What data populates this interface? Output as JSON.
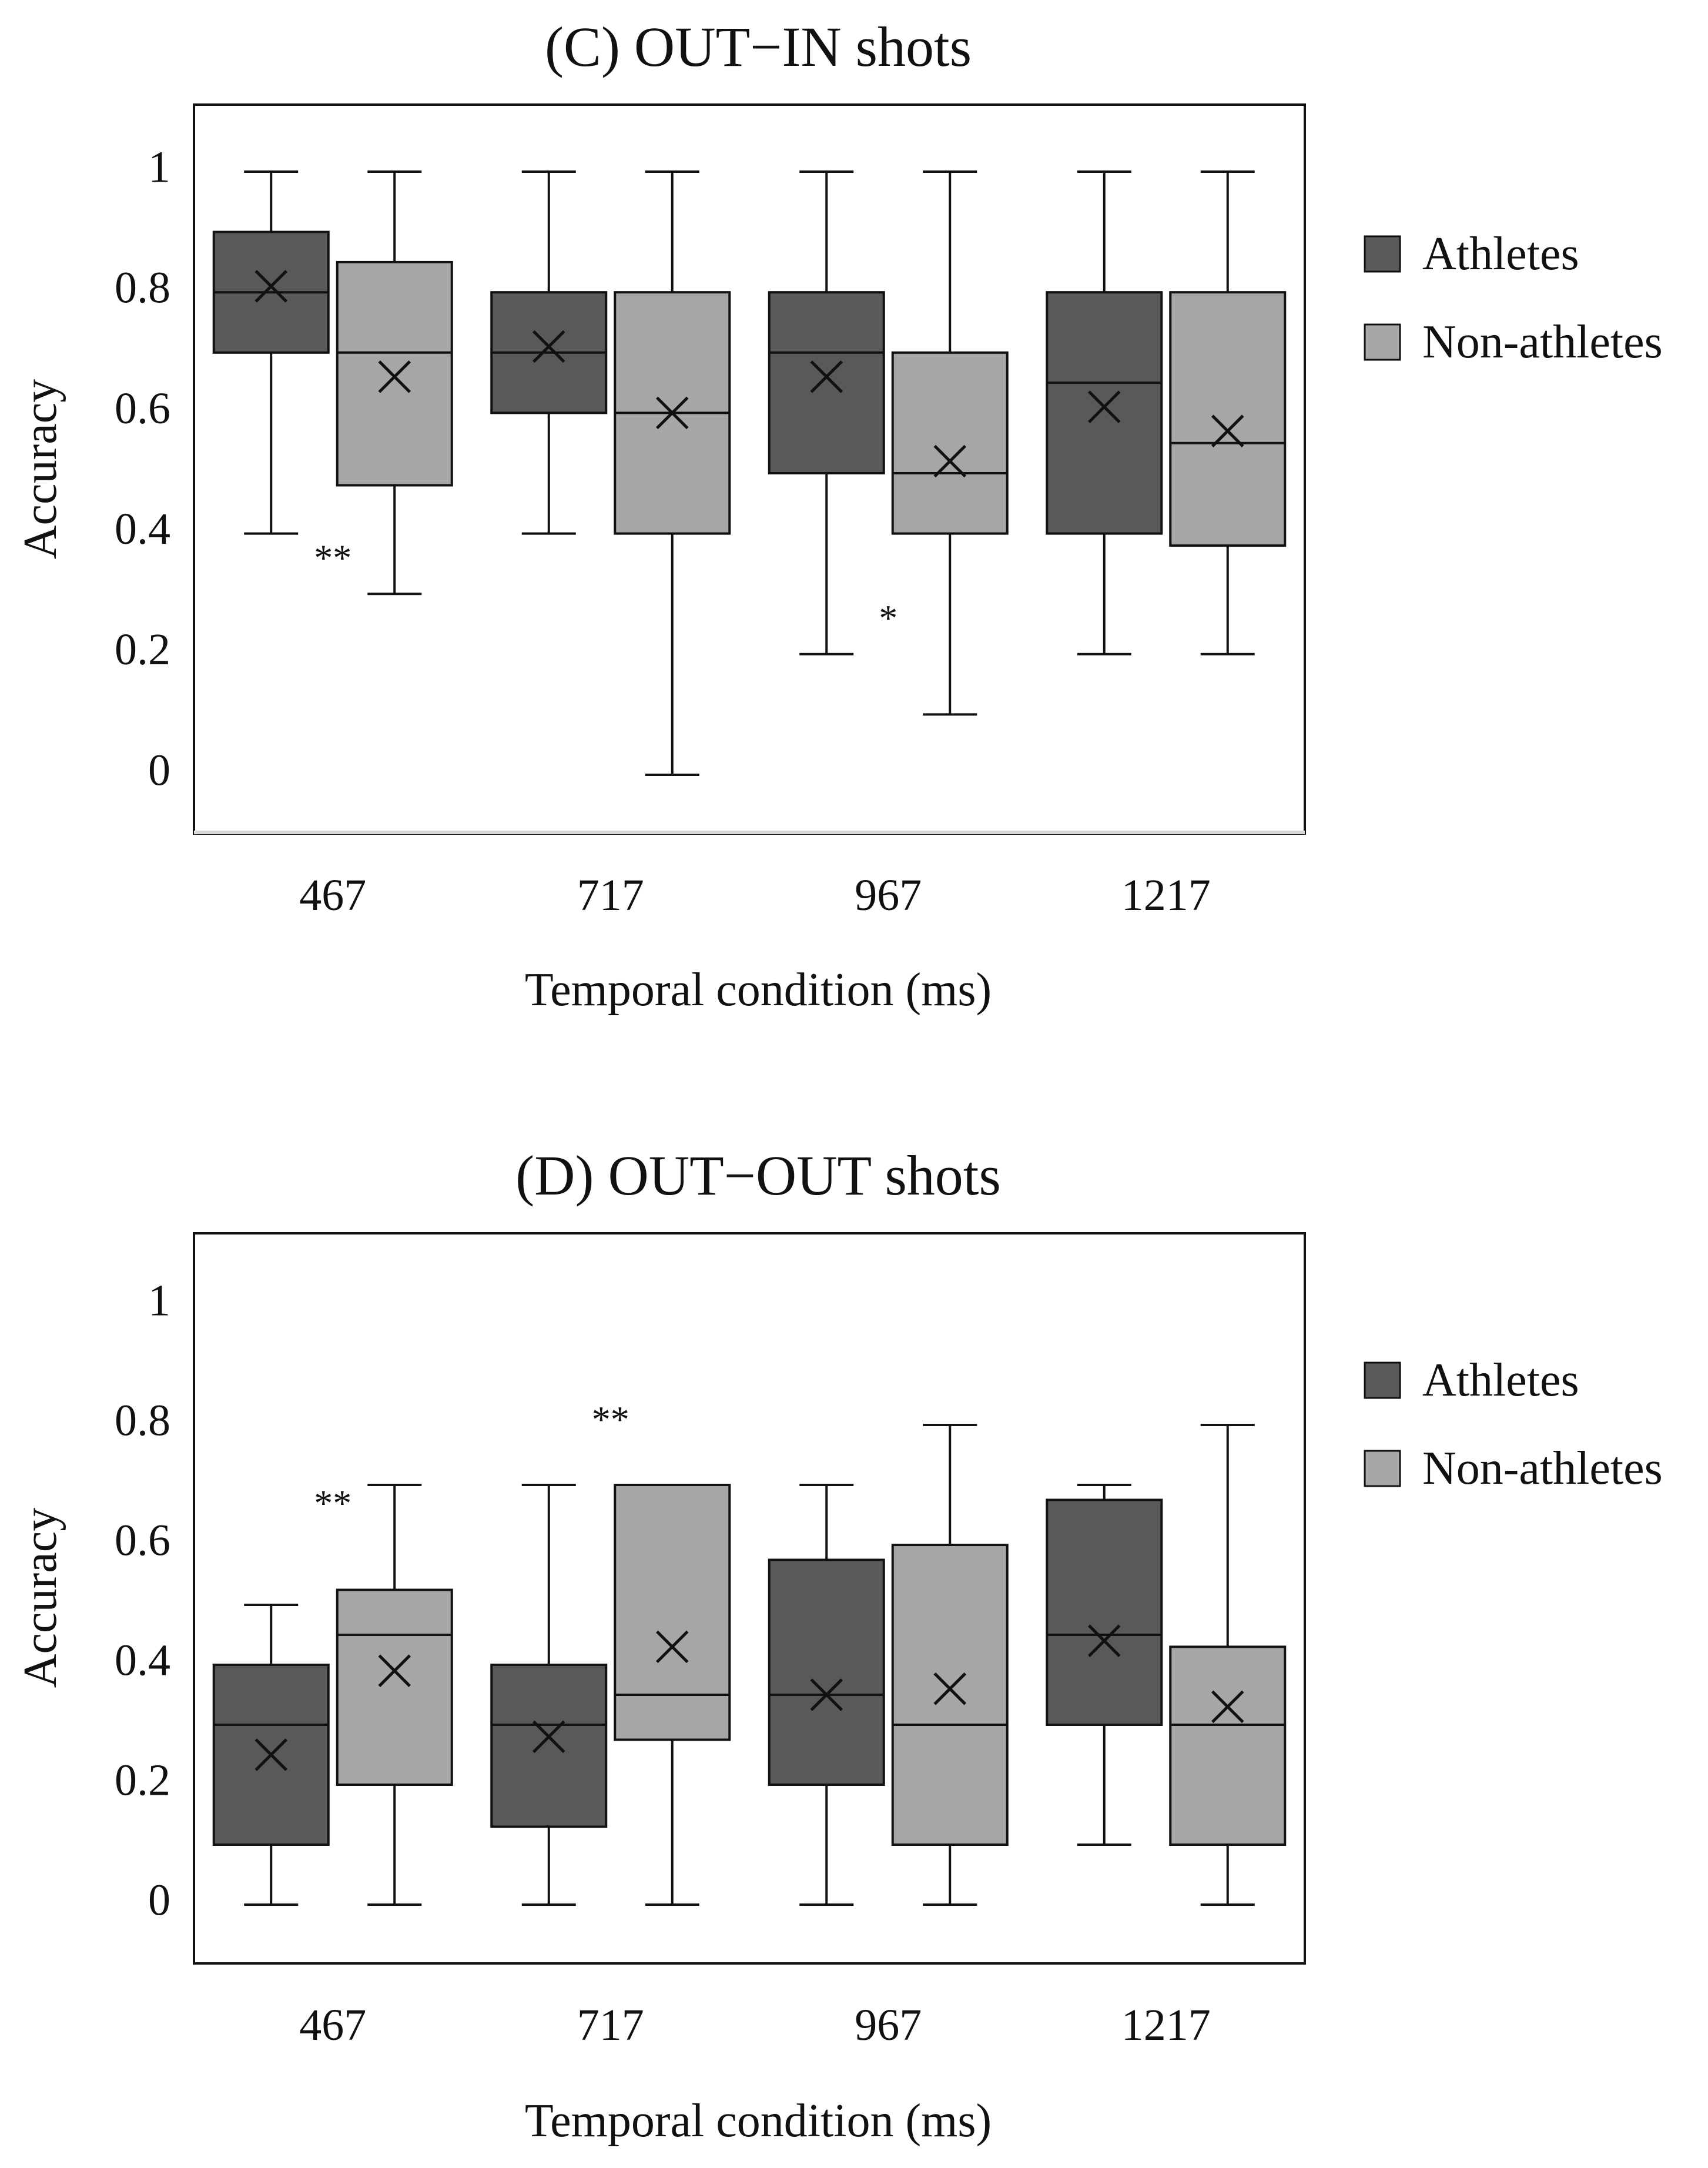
{
  "chart_data": [
    {
      "type": "box",
      "title": "(C) OUT−IN shots",
      "xlabel": "Temporal condition (ms)",
      "ylabel": "Accuracy",
      "ylim": [
        -0.1,
        1.1
      ],
      "yticks": [
        "0",
        "0.2",
        "0.4",
        "0.6",
        "0.8",
        "1"
      ],
      "yticks_values": [
        0,
        0.2,
        0.4,
        0.6,
        0.8,
        1
      ],
      "categories": [
        "467",
        "717",
        "967",
        "1217"
      ],
      "legend": [
        "Athletes",
        "Non-athletes"
      ],
      "legend_position": "right",
      "series": [
        {
          "name": "Athletes",
          "color": "#595959",
          "boxes": [
            {
              "min": 0.4,
              "q1": 0.7,
              "median": 0.8,
              "q3": 0.9,
              "max": 1.0,
              "mean": 0.81
            },
            {
              "min": 0.4,
              "q1": 0.6,
              "median": 0.7,
              "q3": 0.8,
              "max": 1.0,
              "mean": 0.71
            },
            {
              "min": 0.2,
              "q1": 0.5,
              "median": 0.7,
              "q3": 0.8,
              "max": 1.0,
              "mean": 0.66
            },
            {
              "min": 0.2,
              "q1": 0.4,
              "median": 0.65,
              "q3": 0.8,
              "max": 1.0,
              "mean": 0.61
            }
          ]
        },
        {
          "name": "Non-athletes",
          "color": "#a6a6a6",
          "boxes": [
            {
              "min": 0.3,
              "q1": 0.48,
              "median": 0.7,
              "q3": 0.85,
              "max": 1.0,
              "mean": 0.66
            },
            {
              "min": 0.0,
              "q1": 0.4,
              "median": 0.6,
              "q3": 0.8,
              "max": 1.0,
              "mean": 0.6
            },
            {
              "min": 0.1,
              "q1": 0.4,
              "median": 0.5,
              "q3": 0.7,
              "max": 1.0,
              "mean": 0.52
            },
            {
              "min": 0.2,
              "q1": 0.38,
              "median": 0.55,
              "q3": 0.8,
              "max": 1.0,
              "mean": 0.57
            }
          ]
        }
      ],
      "annotations": [
        {
          "text": "**",
          "category": "467",
          "y": 0.36
        },
        {
          "text": "*",
          "category": "967",
          "y": 0.26
        }
      ]
    },
    {
      "type": "box",
      "title": "(D) OUT−OUT shots",
      "xlabel": "Temporal condition (ms)",
      "ylabel": "Accuracy",
      "ylim": [
        -0.1,
        1.1
      ],
      "yticks": [
        "0",
        "0.2",
        "0.4",
        "0.6",
        "0.8",
        "1"
      ],
      "yticks_values": [
        0,
        0.2,
        0.4,
        0.6,
        0.8,
        1
      ],
      "categories": [
        "467",
        "717",
        "967",
        "1217"
      ],
      "legend": [
        "Athletes",
        "Non-athletes"
      ],
      "legend_position": "right",
      "series": [
        {
          "name": "Athletes",
          "color": "#595959",
          "boxes": [
            {
              "min": 0.0,
              "q1": 0.1,
              "median": 0.3,
              "q3": 0.4,
              "max": 0.5,
              "mean": 0.25
            },
            {
              "min": 0.0,
              "q1": 0.13,
              "median": 0.3,
              "q3": 0.4,
              "max": 0.7,
              "mean": 0.28
            },
            {
              "min": 0.0,
              "q1": 0.2,
              "median": 0.35,
              "q3": 0.575,
              "max": 0.7,
              "mean": 0.35
            },
            {
              "min": 0.1,
              "q1": 0.3,
              "median": 0.45,
              "q3": 0.675,
              "max": 0.7,
              "mean": 0.44
            }
          ]
        },
        {
          "name": "Non-athletes",
          "color": "#a6a6a6",
          "boxes": [
            {
              "min": 0.0,
              "q1": 0.2,
              "median": 0.45,
              "q3": 0.525,
              "max": 0.7,
              "mean": 0.39
            },
            {
              "min": 0.0,
              "q1": 0.275,
              "median": 0.35,
              "q3": 0.7,
              "max": 0.7,
              "mean": 0.43
            },
            {
              "min": 0.0,
              "q1": 0.1,
              "median": 0.3,
              "q3": 0.6,
              "max": 0.8,
              "mean": 0.36
            },
            {
              "min": 0.0,
              "q1": 0.1,
              "median": 0.3,
              "q3": 0.43,
              "max": 0.8,
              "mean": 0.33
            }
          ]
        }
      ],
      "annotations": [
        {
          "text": "**",
          "category": "467",
          "y": 0.67
        },
        {
          "text": "**",
          "category": "717",
          "y": 0.81
        }
      ]
    }
  ]
}
